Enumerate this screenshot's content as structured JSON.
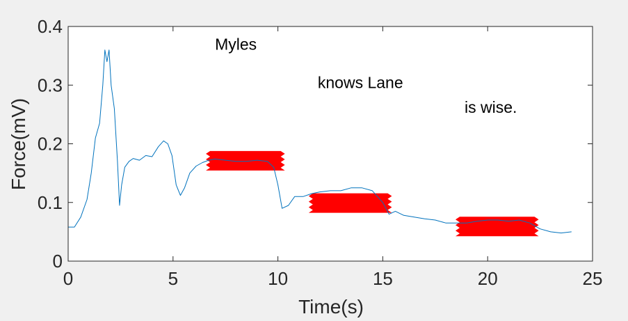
{
  "chart_data": {
    "type": "line",
    "xlabel": "Time(s)",
    "ylabel": "Force(mV)",
    "xlim": [
      0,
      25
    ],
    "ylim": [
      0,
      0.4
    ],
    "xticks": [
      0,
      5,
      10,
      15,
      20,
      25
    ],
    "yticks": [
      0,
      0.1,
      0.2,
      0.3,
      0.4
    ],
    "xtick_labels": [
      "0",
      "5",
      "10",
      "15",
      "20",
      "25"
    ],
    "ytick_labels": [
      "0",
      "0.1",
      "0.2",
      "0.3",
      "0.4"
    ],
    "grid": false,
    "series": [
      {
        "color": "#0072bd",
        "x": [
          0,
          0.3,
          0.6,
          0.9,
          1.1,
          1.3,
          1.5,
          1.65,
          1.75,
          1.85,
          1.95,
          2.05,
          2.2,
          2.35,
          2.45,
          2.55,
          2.7,
          2.9,
          3.1,
          3.4,
          3.7,
          4.0,
          4.3,
          4.55,
          4.75,
          4.95,
          5.15,
          5.35,
          5.55,
          5.8,
          6.1,
          6.4,
          6.7,
          7.0,
          7.5,
          8.0,
          8.5,
          9.0,
          9.5,
          9.8,
          10.0,
          10.2,
          10.5,
          10.8,
          11.2,
          11.6,
          12.0,
          12.5,
          13.0,
          13.5,
          14.0,
          14.5,
          15.0,
          15.3,
          15.6,
          16.0,
          16.5,
          17.0,
          17.5,
          18.0,
          18.5,
          19.0,
          19.5,
          20.0,
          20.5,
          21.0,
          21.5,
          22.0,
          22.5,
          23.0,
          23.5,
          24.0
        ],
        "y": [
          0.058,
          0.058,
          0.075,
          0.105,
          0.15,
          0.21,
          0.235,
          0.3,
          0.36,
          0.34,
          0.36,
          0.3,
          0.26,
          0.17,
          0.095,
          0.13,
          0.16,
          0.17,
          0.175,
          0.172,
          0.18,
          0.178,
          0.195,
          0.205,
          0.2,
          0.18,
          0.13,
          0.112,
          0.125,
          0.15,
          0.162,
          0.168,
          0.172,
          0.174,
          0.172,
          0.17,
          0.17,
          0.172,
          0.17,
          0.16,
          0.13,
          0.09,
          0.095,
          0.11,
          0.11,
          0.115,
          0.118,
          0.12,
          0.12,
          0.125,
          0.125,
          0.12,
          0.1,
          0.08,
          0.085,
          0.078,
          0.075,
          0.072,
          0.07,
          0.065,
          0.065,
          0.065,
          0.068,
          0.07,
          0.07,
          0.068,
          0.07,
          0.065,
          0.055,
          0.05,
          0.048,
          0.05
        ]
      }
    ],
    "highlight_bands": [
      {
        "x0": 6.7,
        "x1": 10.2,
        "y": 0.171,
        "color": "#ff0000"
      },
      {
        "x0": 11.6,
        "x1": 15.3,
        "y": 0.099,
        "color": "#ff0000"
      },
      {
        "x0": 18.6,
        "x1": 22.3,
        "y": 0.059,
        "color": "#ff0000"
      }
    ],
    "annotations": [
      {
        "text": "Myles",
        "x": 7.0,
        "y": 0.36
      },
      {
        "text": "knows Lane",
        "x": 11.9,
        "y": 0.295
      },
      {
        "text": "is wise.",
        "x": 18.9,
        "y": 0.253
      }
    ]
  }
}
